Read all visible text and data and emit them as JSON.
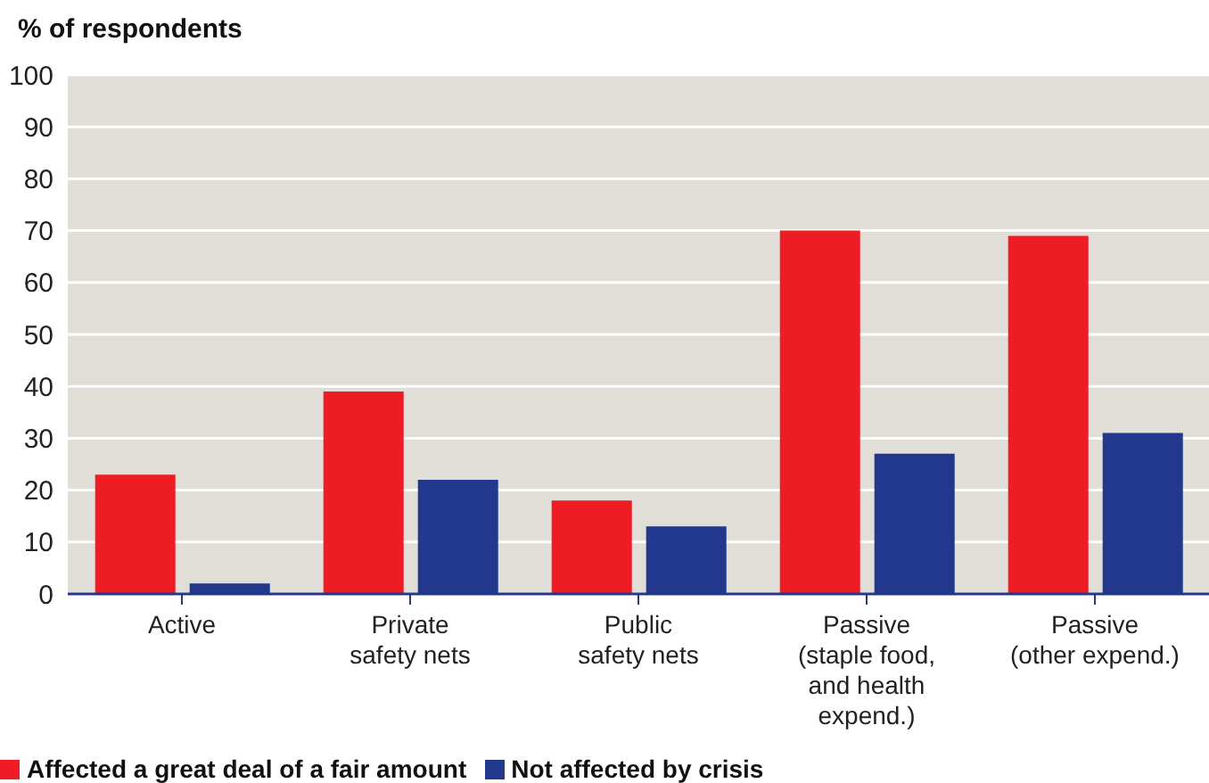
{
  "chart_data": {
    "type": "bar",
    "ylabel": "% of respondents",
    "categories": [
      "Active",
      "Private\nsafety nets",
      "Public\nsafety nets",
      "Passive\n(staple food,\nand health\nexpend.)",
      "Passive\n(other expend.)"
    ],
    "series": [
      {
        "name": "Affected a great deal of a fair amount",
        "color": "#ee1c25",
        "values": [
          23,
          39,
          18,
          70,
          69
        ]
      },
      {
        "name": "Not affected by crisis",
        "color": "#21388c",
        "values": [
          2,
          22,
          13,
          27,
          31
        ]
      }
    ],
    "ylim": [
      0,
      100
    ],
    "yticks": [
      0,
      10,
      20,
      30,
      40,
      50,
      60,
      70,
      80,
      90,
      100
    ],
    "grid": "y",
    "legend": "bottom left"
  }
}
